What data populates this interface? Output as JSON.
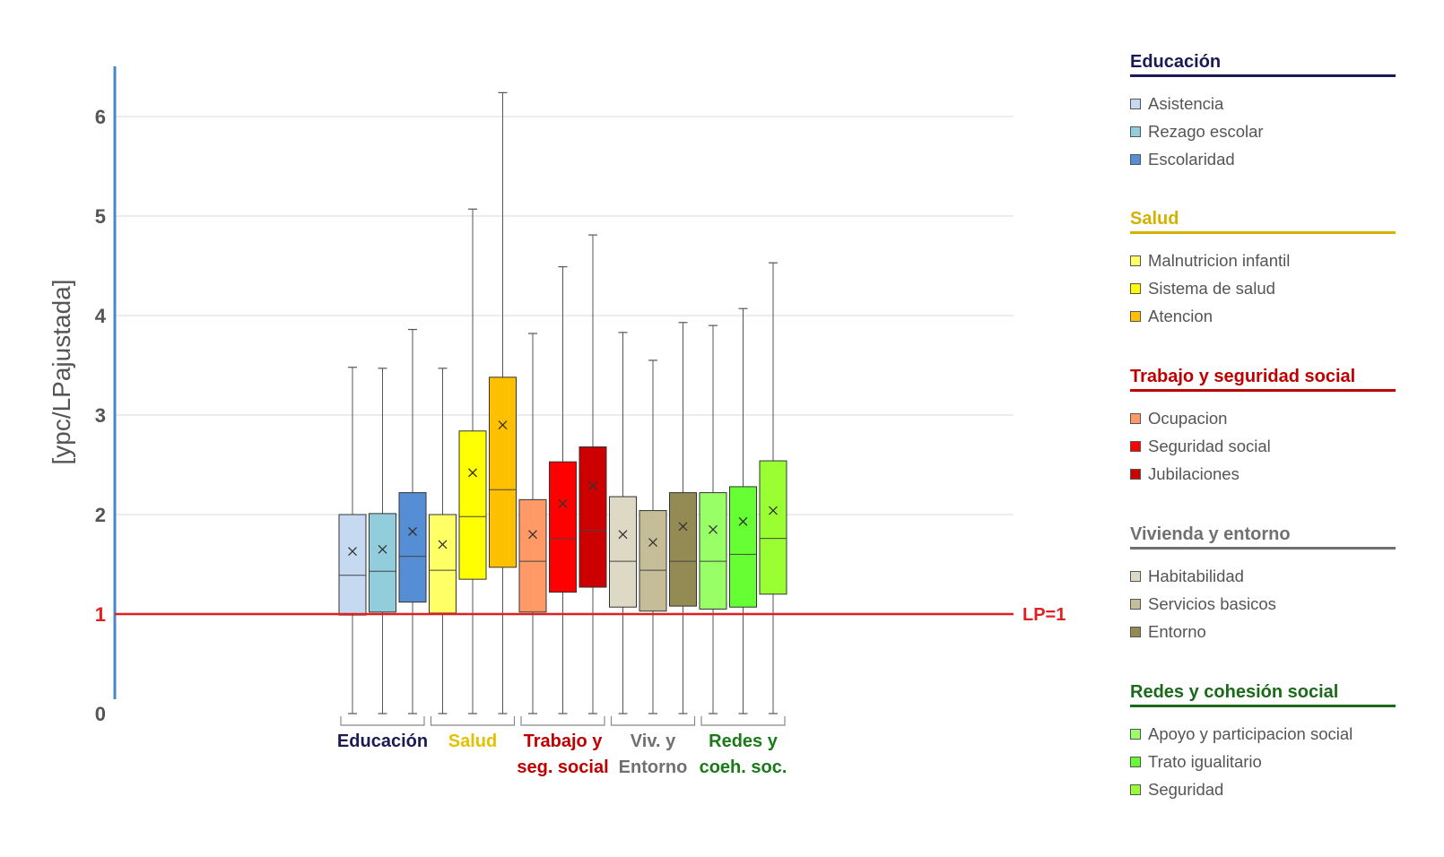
{
  "chart_data": {
    "type": "box",
    "ylabel": "[ypc/LPajustada]",
    "ylim": [
      0,
      6.5
    ],
    "yticks": [
      "0",
      "1",
      "2",
      "3",
      "4",
      "5",
      "6"
    ],
    "reference_line": {
      "value": 1,
      "label": "LP=1",
      "color": "#e02020"
    },
    "groups": [
      {
        "label_lines": [
          "Educación"
        ],
        "color": "#1a1a55"
      },
      {
        "label_lines": [
          "Salud"
        ],
        "color": "#e5c000"
      },
      {
        "label_lines": [
          "Trabajo y",
          "seg. social"
        ],
        "color": "#c00000"
      },
      {
        "label_lines": [
          "Viv. y",
          "Entorno"
        ],
        "color": "#707070"
      },
      {
        "label_lines": [
          "Redes y",
          "coeh. soc."
        ],
        "color": "#1a7a1a"
      }
    ],
    "series": [
      {
        "name": "Asistencia",
        "group": 0,
        "color": "#c5d9f1",
        "min": 0,
        "q1": 0.99,
        "median": 1.39,
        "q3": 2.0,
        "max": 3.48,
        "mean": 1.63
      },
      {
        "name": "Rezago escolar",
        "group": 0,
        "color": "#92cddc",
        "min": 0,
        "q1": 1.02,
        "median": 1.43,
        "q3": 2.01,
        "max": 3.47,
        "mean": 1.65
      },
      {
        "name": "Escolaridad",
        "group": 0,
        "color": "#558ed5",
        "min": 0,
        "q1": 1.12,
        "median": 1.58,
        "q3": 2.22,
        "max": 3.86,
        "mean": 1.83
      },
      {
        "name": "Malnutricion infantil",
        "group": 1,
        "color": "#ffff66",
        "min": 0,
        "q1": 1.01,
        "median": 1.44,
        "q3": 2.0,
        "max": 3.47,
        "mean": 1.7
      },
      {
        "name": "Sistema de salud",
        "group": 1,
        "color": "#ffff00",
        "min": 0,
        "q1": 1.35,
        "median": 1.98,
        "q3": 2.84,
        "max": 5.07,
        "mean": 2.42
      },
      {
        "name": "Atencion",
        "group": 1,
        "color": "#ffc000",
        "min": 0,
        "q1": 1.47,
        "median": 2.25,
        "q3": 3.38,
        "max": 6.24,
        "mean": 2.9
      },
      {
        "name": "Ocupacion",
        "group": 2,
        "color": "#ff9966",
        "min": 0,
        "q1": 1.02,
        "median": 1.53,
        "q3": 2.15,
        "max": 3.82,
        "mean": 1.8
      },
      {
        "name": "Seguridad social",
        "group": 2,
        "color": "#ff0000",
        "min": 0,
        "q1": 1.22,
        "median": 1.76,
        "q3": 2.53,
        "max": 4.49,
        "mean": 2.11
      },
      {
        "name": "Jubilaciones",
        "group": 2,
        "color": "#cc0000",
        "min": 0,
        "q1": 1.27,
        "median": 1.84,
        "q3": 2.68,
        "max": 4.81,
        "mean": 2.29
      },
      {
        "name": "Habitabilidad",
        "group": 3,
        "color": "#ddd9c4",
        "min": 0,
        "q1": 1.07,
        "median": 1.53,
        "q3": 2.18,
        "max": 3.83,
        "mean": 1.8
      },
      {
        "name": "Servicios basicos",
        "group": 3,
        "color": "#c4bd97",
        "min": 0,
        "q1": 1.03,
        "median": 1.44,
        "q3": 2.04,
        "max": 3.55,
        "mean": 1.72
      },
      {
        "name": "Entorno",
        "group": 3,
        "color": "#948a54",
        "min": 0,
        "q1": 1.08,
        "median": 1.53,
        "q3": 2.22,
        "max": 3.93,
        "mean": 1.88
      },
      {
        "name": "Apoyo y participacion social",
        "group": 4,
        "color": "#99ff66",
        "min": 0,
        "q1": 1.05,
        "median": 1.53,
        "q3": 2.22,
        "max": 3.9,
        "mean": 1.85
      },
      {
        "name": "Trato igualitario",
        "group": 4,
        "color": "#66ff33",
        "min": 0,
        "q1": 1.07,
        "median": 1.6,
        "q3": 2.28,
        "max": 4.07,
        "mean": 1.93
      },
      {
        "name": "Seguridad",
        "group": 4,
        "color": "#99ff33",
        "min": 0,
        "q1": 1.2,
        "median": 1.76,
        "q3": 2.54,
        "max": 4.53,
        "mean": 2.04
      }
    ]
  },
  "legend": [
    {
      "title": "Educación",
      "color": "#1a1a55",
      "items": [
        {
          "label": "Asistencia",
          "color": "#c5d9f1"
        },
        {
          "label": "Rezago escolar",
          "color": "#92cddc"
        },
        {
          "label": "Escolaridad",
          "color": "#558ed5"
        }
      ]
    },
    {
      "title": "Salud",
      "color": "#d4b000",
      "items": [
        {
          "label": "Malnutricion infantil",
          "color": "#ffff66"
        },
        {
          "label": "Sistema de salud",
          "color": "#ffff00"
        },
        {
          "label": "Atencion",
          "color": "#ffc000"
        }
      ]
    },
    {
      "title": "Trabajo y seguridad social",
      "color": "#c00000",
      "items": [
        {
          "label": "Ocupacion",
          "color": "#ff9966"
        },
        {
          "label": "Seguridad social",
          "color": "#ff0000"
        },
        {
          "label": "Jubilaciones",
          "color": "#cc0000"
        }
      ]
    },
    {
      "title": "Vivienda y entorno",
      "color": "#707070",
      "items": [
        {
          "label": "Habitabilidad",
          "color": "#ddd9c4"
        },
        {
          "label": "Servicios basicos",
          "color": "#c4bd97"
        },
        {
          "label": "Entorno",
          "color": "#948a54"
        }
      ]
    },
    {
      "title": "Redes y cohesión social",
      "color": "#1a6a1a",
      "items": [
        {
          "label": "Apoyo y participacion social",
          "color": "#99ff66"
        },
        {
          "label": "Trato igualitario",
          "color": "#66ff33"
        },
        {
          "label": "Seguridad",
          "color": "#99ff33"
        }
      ]
    }
  ]
}
